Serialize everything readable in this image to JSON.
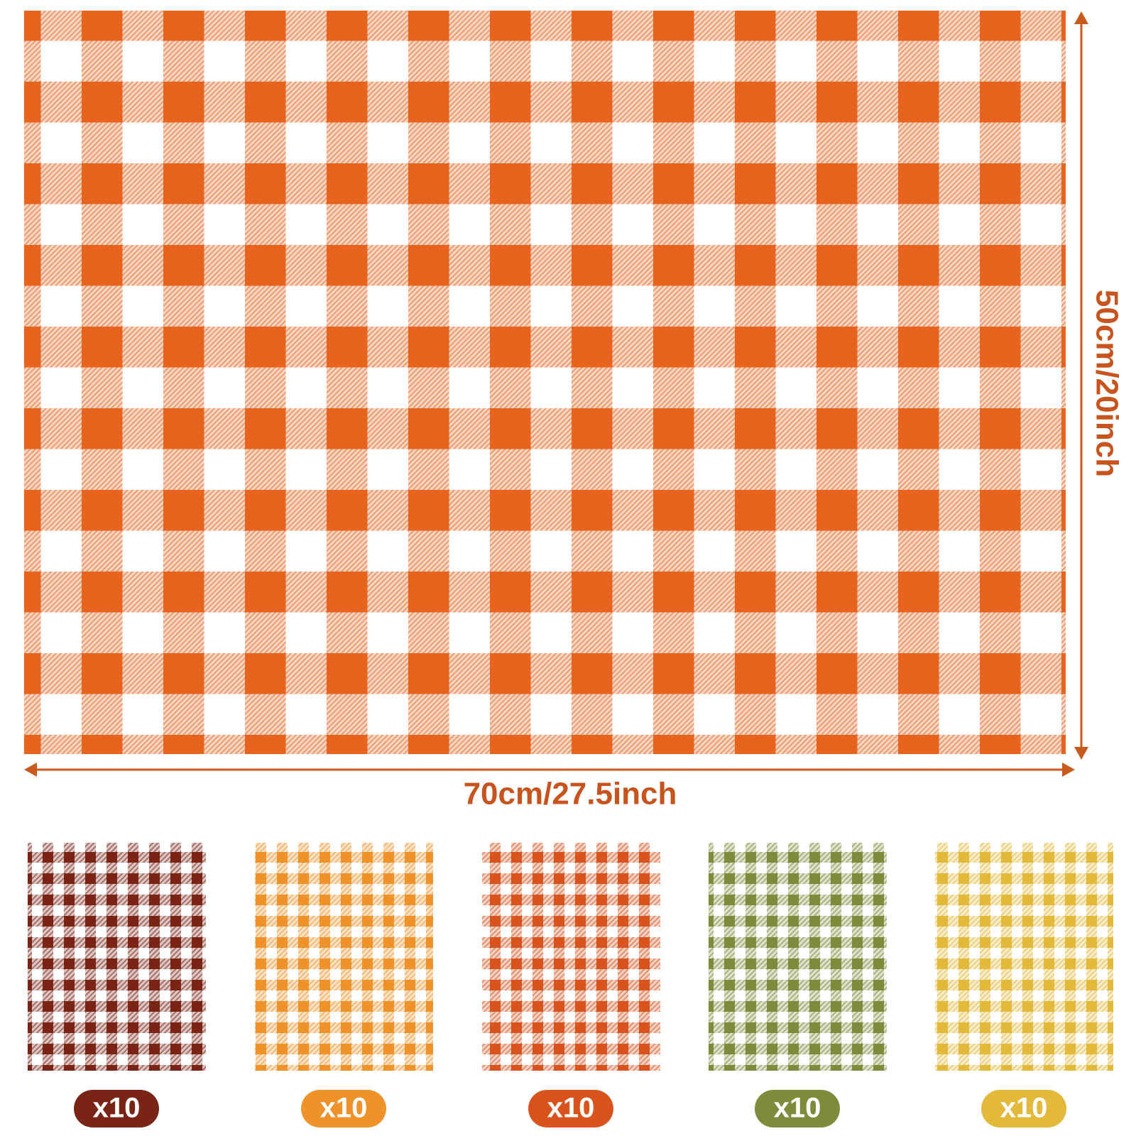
{
  "product": {
    "main_color": "#e8641e",
    "width_label": "70cm/27.5inch",
    "height_label": "50cm/20inch",
    "swatches": [
      {
        "color": "#7a2416",
        "quantity": "x10"
      },
      {
        "color": "#f0922a",
        "quantity": "x10"
      },
      {
        "color": "#d9531e",
        "quantity": "x10"
      },
      {
        "color": "#7f8a3a",
        "quantity": "x10"
      },
      {
        "color": "#e2b93a",
        "quantity": "x10"
      }
    ]
  }
}
